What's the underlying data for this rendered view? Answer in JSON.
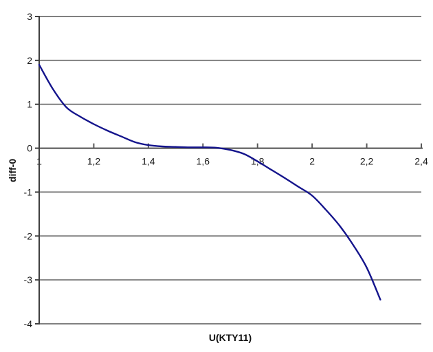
{
  "chart_data": {
    "type": "line",
    "title": "",
    "xlabel": "U(KTY11)",
    "ylabel": "diff-0",
    "xlim": [
      1,
      2.4
    ],
    "ylim": [
      -4,
      3
    ],
    "grid": "horizontal",
    "legend": "none",
    "decimal_separator": ",",
    "x_ticks": {
      "values": [
        1,
        1.2,
        1.4,
        1.6,
        1.8,
        2,
        2.2,
        2.4
      ],
      "labels": [
        "1",
        "1,2",
        "1,4",
        "1,6",
        "1,8",
        "2",
        "2,2",
        "2,4"
      ]
    },
    "y_ticks": {
      "values": [
        3,
        2,
        1,
        0,
        -1,
        -2,
        -3,
        -4
      ],
      "labels": [
        "3",
        "2",
        "1",
        "0",
        "-1",
        "-2",
        "-3",
        "-4"
      ]
    },
    "colors": {
      "background": "#ffffff",
      "gridline": "#808080",
      "y_axis": "#3f3f3f",
      "x_axis": "#595959",
      "tick_label": "#1a1a1a",
      "series": "#14148c"
    },
    "series": [
      {
        "name": "diff-0",
        "color": "#14148c",
        "x": [
          1.0,
          1.05,
          1.1,
          1.15,
          1.2,
          1.25,
          1.3,
          1.35,
          1.4,
          1.45,
          1.5,
          1.55,
          1.6,
          1.65,
          1.7,
          1.75,
          1.8,
          1.85,
          1.9,
          1.95,
          2.0,
          2.05,
          2.1,
          2.15,
          2.2,
          2.25
        ],
        "y": [
          1.9,
          1.35,
          0.93,
          0.72,
          0.55,
          0.4,
          0.27,
          0.14,
          0.07,
          0.04,
          0.03,
          0.02,
          0.02,
          0.01,
          -0.04,
          -0.13,
          -0.3,
          -0.49,
          -0.68,
          -0.88,
          -1.08,
          -1.4,
          -1.76,
          -2.2,
          -2.72,
          -3.45
        ]
      }
    ]
  }
}
